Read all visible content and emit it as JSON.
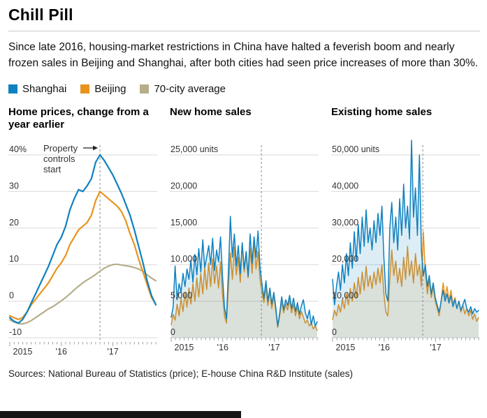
{
  "page": {
    "title": "Chill Pill",
    "subtitle": "Since late 2016, housing-market restrictions in China have halted a feverish boom and nearly frozen sales in Beijing and Shanghai, after both cities had seen price increases of more than 30%.",
    "sources": "Sources: National Bureau of Statistics (price); E-house China R&D Institute (sales)"
  },
  "colors": {
    "shanghai": "#0e81c0",
    "beijing": "#e8931c",
    "seventy": "#b5ae8a",
    "grid": "#d9d9d9",
    "tick": "#8a8a8a",
    "vline": "#8a8a8a"
  },
  "legend": [
    {
      "label": "Shanghai",
      "color": "shanghai"
    },
    {
      "label": "Beijing",
      "color": "beijing"
    },
    {
      "label": "70-city average",
      "color": "seventy"
    }
  ],
  "chart_data": [
    {
      "type": "line",
      "title": "Home prices, change from a year earlier",
      "ylim": [
        -10,
        40
      ],
      "yticks": [
        {
          "v": 40,
          "label": "40%"
        },
        {
          "v": 30,
          "label": "30"
        },
        {
          "v": 20,
          "label": "20"
        },
        {
          "v": 10,
          "label": "10"
        },
        {
          "v": 0,
          "label": "0"
        },
        {
          "v": -10,
          "label": "-10"
        }
      ],
      "months": 35,
      "x_start": "2015-01",
      "x_end": "2017-11",
      "xticks": [
        {
          "m": 3,
          "label": "2015"
        },
        {
          "m": 12,
          "label": "'16"
        },
        {
          "m": 24,
          "label": "'17"
        }
      ],
      "vline_month": 21,
      "axis_gap": 6,
      "area": false,
      "line_width": 2.2,
      "annotation": {
        "text": "Property controls start",
        "lines": [
          "Property",
          "controls",
          "start"
        ]
      },
      "series": [
        {
          "name": "Shanghai",
          "color": "shanghai",
          "values": [
            -4.5,
            -5.5,
            -6,
            -5,
            -3,
            -0.5,
            2,
            4.5,
            7,
            9.5,
            12.5,
            15.5,
            17.5,
            20.5,
            25,
            28,
            30.5,
            30,
            31.5,
            33.5,
            38,
            40,
            38.5,
            36.5,
            34.5,
            32,
            29.5,
            26.5,
            23.5,
            19.5,
            15,
            10.5,
            5.5,
            1.5,
            -1
          ]
        },
        {
          "name": "Beijing",
          "color": "beijing",
          "values": [
            -4,
            -4.5,
            -5,
            -4.5,
            -3,
            -1,
            0.5,
            2,
            3.5,
            5,
            7,
            9,
            10.5,
            12.5,
            15.5,
            17.5,
            19.5,
            20.5,
            21.5,
            23.5,
            27.5,
            30,
            29,
            28,
            27,
            26,
            24.5,
            22,
            18.5,
            15.5,
            11.5,
            8,
            4.5,
            1,
            -0.8
          ]
        },
        {
          "name": "70-city average",
          "color": "seventy",
          "values": [
            -5.1,
            -5.7,
            -6.1,
            -6.2,
            -5.9,
            -5.3,
            -4.5,
            -3.7,
            -2.9,
            -2.1,
            -1.5,
            -0.7,
            0.1,
            1.0,
            2.0,
            3.1,
            4.1,
            5.0,
            5.8,
            6.5,
            7.3,
            8.2,
            9.0,
            9.6,
            10.0,
            10.1,
            9.9,
            9.7,
            9.5,
            9.2,
            8.8,
            8.2,
            7.2,
            6.3,
            5.6
          ]
        }
      ]
    },
    {
      "type": "line",
      "title": "New home sales",
      "ylim": [
        0,
        25000
      ],
      "yticks": [
        {
          "v": 25000,
          "label": "25,000 units"
        },
        {
          "v": 20000,
          "label": "20,000"
        },
        {
          "v": 15000,
          "label": "15,000"
        },
        {
          "v": 10000,
          "label": "10,000"
        },
        {
          "v": 5000,
          "label": "5,000"
        },
        {
          "v": 0,
          "label": "0"
        }
      ],
      "months": 35,
      "x_start": "2015-01",
      "x_end": "2017-11",
      "xticks": [
        {
          "m": 3,
          "label": "2015"
        },
        {
          "m": 12,
          "label": "'16"
        },
        {
          "m": 24,
          "label": "'17"
        }
      ],
      "vline_month": 21,
      "axis_gap": 0,
      "area": true,
      "line_width": 1.5,
      "series": [
        {
          "name": "Shanghai",
          "color": "shanghai",
          "values": [
            2800,
            4200,
            9800,
            5200,
            7400,
            6200,
            8800,
            7000,
            9400,
            8000,
            10600,
            7600,
            11400,
            8600,
            12200,
            9000,
            13400,
            9600,
            11000,
            12600,
            10000,
            13600,
            9200,
            12000,
            10400,
            13800,
            8600,
            4200,
            2600,
            9000,
            16600,
            11000,
            14200,
            9800,
            12600,
            8800,
            13000,
            9400,
            11800,
            8400,
            14200,
            10200,
            13800,
            11000,
            14600,
            9600,
            7400,
            5400,
            7800,
            5000,
            6800,
            4600,
            6200,
            4200,
            1600,
            3400,
            5600,
            3800,
            5200,
            4400,
            5800,
            4000,
            5400,
            3600,
            4800,
            3200,
            4400,
            5200,
            3400,
            2600,
            3800,
            1800,
            3000,
            1600,
            2200
          ]
        },
        {
          "name": "Beijing",
          "color": "beijing",
          "values": [
            1800,
            3200,
            2400,
            4600,
            3000,
            5400,
            3600,
            6200,
            4200,
            6800,
            4600,
            7400,
            5000,
            8200,
            5600,
            8800,
            6000,
            9600,
            6600,
            10200,
            7000,
            10800,
            7400,
            9800,
            6800,
            10400,
            6000,
            3000,
            2000,
            7000,
            11600,
            8000,
            12400,
            8600,
            11000,
            7600,
            12800,
            9000,
            11600,
            8200,
            12200,
            8800,
            13200,
            9400,
            11800,
            8000,
            6200,
            4800,
            7000,
            4400,
            6400,
            4000,
            5800,
            3600,
            1400,
            3000,
            5000,
            3400,
            4600,
            3800,
            5200,
            3400,
            4600,
            3000,
            4200,
            2600,
            3600,
            2800,
            2000,
            2400,
            1600,
            2000,
            1200,
            1600,
            1000
          ]
        }
      ]
    },
    {
      "type": "line",
      "title": "Existing home sales",
      "ylim": [
        0,
        50000
      ],
      "yticks": [
        {
          "v": 50000,
          "label": "50,000 units"
        },
        {
          "v": 40000,
          "label": "40,000"
        },
        {
          "v": 30000,
          "label": "30,000"
        },
        {
          "v": 20000,
          "label": "20,000"
        },
        {
          "v": 10000,
          "label": "10,000"
        },
        {
          "v": 0,
          "label": "0"
        }
      ],
      "months": 35,
      "x_start": "2015-01",
      "x_end": "2017-11",
      "xticks": [
        {
          "m": 3,
          "label": "2015"
        },
        {
          "m": 12,
          "label": "'16"
        },
        {
          "m": 24,
          "label": "'17"
        }
      ],
      "vline_month": 21,
      "axis_gap": 0,
      "area": true,
      "line_width": 1.5,
      "series": [
        {
          "name": "Shanghai",
          "color": "shanghai",
          "values": [
            16000,
            9000,
            14000,
            18000,
            13000,
            20000,
            15000,
            23000,
            17000,
            26000,
            19000,
            29000,
            21000,
            31000,
            23000,
            33000,
            25000,
            35000,
            26000,
            30000,
            24000,
            32000,
            26000,
            34000,
            28000,
            36000,
            22000,
            12000,
            10000,
            30000,
            37000,
            26000,
            33000,
            24000,
            38000,
            28000,
            42000,
            30000,
            36000,
            27000,
            54000,
            33000,
            41000,
            28000,
            50000,
            24000,
            17000,
            20000,
            14000,
            17000,
            12000,
            15000,
            11000,
            9000,
            7000,
            10000,
            13000,
            10000,
            12000,
            9500,
            11500,
            8500,
            10500,
            8000,
            10000,
            7500,
            9000,
            10500,
            8000,
            7000,
            8500,
            6500,
            8000,
            7000,
            7500
          ]
        },
        {
          "name": "Beijing",
          "color": "beijing",
          "values": [
            5000,
            7500,
            6000,
            9000,
            7000,
            10500,
            8000,
            12000,
            9000,
            13500,
            10000,
            15000,
            11000,
            16500,
            12000,
            18000,
            13000,
            19500,
            14000,
            17000,
            13500,
            18000,
            14500,
            19000,
            15000,
            20000,
            12000,
            7000,
            6000,
            16000,
            24000,
            17000,
            21000,
            15000,
            19000,
            14000,
            22000,
            16000,
            25000,
            17000,
            21000,
            15000,
            23000,
            17000,
            20000,
            14000,
            29000,
            18000,
            12000,
            16000,
            11000,
            14000,
            10000,
            8000,
            6000,
            10000,
            15000,
            11000,
            14000,
            10000,
            13000,
            9000,
            11000,
            8000,
            10000,
            7000,
            9000,
            6500,
            8000,
            6000,
            7500,
            5000,
            6500,
            4500,
            5500
          ]
        }
      ]
    }
  ]
}
